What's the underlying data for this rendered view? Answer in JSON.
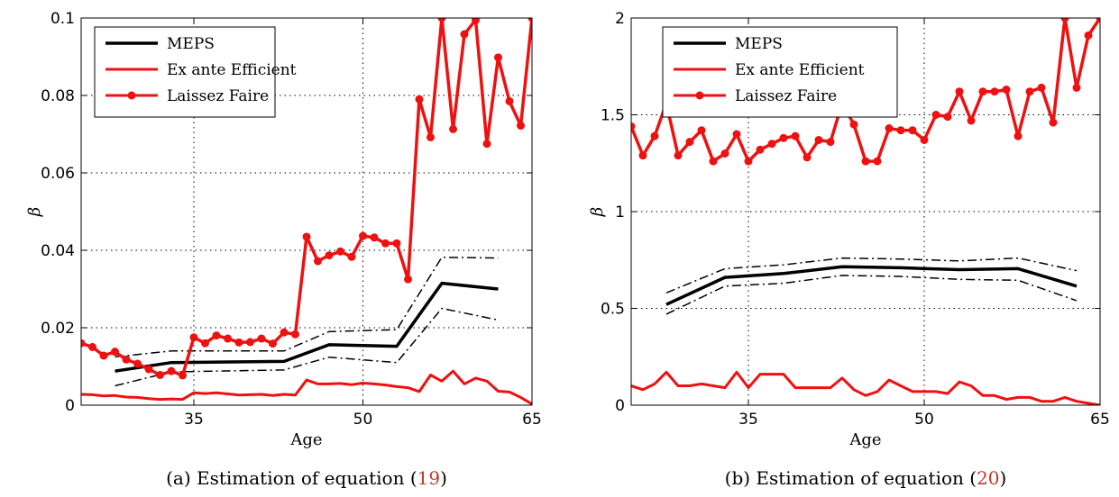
{
  "figure": {
    "panels": [
      {
        "caption_prefix": "(a)  Estimation of equation (",
        "caption_ref": "19",
        "caption_suffix": ")"
      },
      {
        "caption_prefix": "(b)  Estimation of equation (",
        "caption_ref": "20",
        "caption_suffix": ")"
      }
    ]
  },
  "colors": {
    "meps": "#000000",
    "efficient": "#ee1111",
    "laissez": "#ee1111",
    "grid": "#000000",
    "caption_ref": "#c0392b"
  },
  "chart_data": [
    {
      "type": "line",
      "xlabel": "Age",
      "ylabel": "β",
      "xlim": [
        25,
        65
      ],
      "ylim": [
        0,
        0.1
      ],
      "xticks": [
        35,
        50,
        65
      ],
      "yticks": [
        0,
        0.02,
        0.04,
        0.06,
        0.08,
        0.1
      ],
      "xtick_labels": [
        "35",
        "50",
        "65"
      ],
      "ytick_labels": [
        "0",
        "0.02",
        "0.04",
        "0.06",
        "0.08",
        "0.1"
      ],
      "grid": true,
      "legend": "top-left",
      "series": [
        {
          "name": "MEPS",
          "style": "solid",
          "color": "#000000",
          "x": [
            28,
            33,
            43,
            47,
            53,
            57,
            62
          ],
          "y": [
            0.0088,
            0.011,
            0.0113,
            0.0156,
            0.0152,
            0.0315,
            0.03
          ]
        },
        {
          "name": "",
          "style": "dashdot",
          "color": "#000000",
          "x": [
            28,
            33,
            43,
            47,
            53,
            57,
            62
          ],
          "y": [
            0.0125,
            0.014,
            0.014,
            0.019,
            0.0195,
            0.0382,
            0.038
          ]
        },
        {
          "name": "",
          "style": "dashdot",
          "color": "#000000",
          "x": [
            28,
            33,
            43,
            47,
            53,
            57,
            62
          ],
          "y": [
            0.005,
            0.0086,
            0.0091,
            0.0124,
            0.011,
            0.025,
            0.022
          ]
        },
        {
          "name": "Ex ante Efficient",
          "style": "solid",
          "color": "#ee1111",
          "x": [
            25,
            26,
            27,
            28,
            29,
            30,
            31,
            32,
            33,
            34,
            35,
            36,
            37,
            38,
            39,
            40,
            41,
            42,
            43,
            44,
            45,
            46,
            47,
            48,
            49,
            50,
            51,
            52,
            53,
            54,
            55,
            56,
            57,
            58,
            59,
            60,
            61,
            62,
            63,
            64,
            65
          ],
          "y": [
            0.0028,
            0.0027,
            0.0024,
            0.0025,
            0.0021,
            0.002,
            0.0017,
            0.0015,
            0.0016,
            0.0015,
            0.0032,
            0.003,
            0.0032,
            0.0029,
            0.0026,
            0.0027,
            0.0028,
            0.0025,
            0.0028,
            0.0026,
            0.0065,
            0.0055,
            0.0055,
            0.0056,
            0.0053,
            0.0057,
            0.0055,
            0.0052,
            0.0048,
            0.0045,
            0.0035,
            0.0078,
            0.0062,
            0.0088,
            0.0055,
            0.007,
            0.0062,
            0.0036,
            0.0034,
            0.002,
            0.0003
          ]
        },
        {
          "name": "Laissez Faire",
          "style": "solid-marker",
          "color": "#ee1111",
          "x": [
            25,
            26,
            27,
            28,
            29,
            30,
            31,
            32,
            33,
            34,
            35,
            36,
            37,
            38,
            39,
            40,
            41,
            42,
            43,
            44,
            45,
            46,
            47,
            48,
            49,
            50,
            51,
            52,
            53,
            54,
            55,
            56,
            57,
            58,
            59,
            60,
            61,
            62,
            63,
            64,
            65
          ],
          "y": [
            0.016,
            0.015,
            0.0128,
            0.0138,
            0.0118,
            0.0107,
            0.0093,
            0.0078,
            0.0088,
            0.0077,
            0.0175,
            0.016,
            0.018,
            0.0172,
            0.0162,
            0.0163,
            0.0172,
            0.0159,
            0.0188,
            0.0183,
            0.0435,
            0.0372,
            0.0387,
            0.0397,
            0.0383,
            0.0437,
            0.0433,
            0.0418,
            0.0418,
            0.0325,
            0.079,
            0.0692,
            0.1,
            0.0713,
            0.0958,
            0.0995,
            0.0675,
            0.0898,
            0.0785,
            0.0722,
            0.1
          ]
        }
      ]
    },
    {
      "type": "line",
      "xlabel": "Age",
      "ylabel": "β",
      "xlim": [
        25,
        65
      ],
      "ylim": [
        0,
        2
      ],
      "xticks": [
        35,
        50,
        65
      ],
      "yticks": [
        0,
        0.5,
        1,
        1.5,
        2
      ],
      "xtick_labels": [
        "35",
        "50",
        "65"
      ],
      "ytick_labels": [
        "0",
        "0.5",
        "1",
        "1.5",
        "2"
      ],
      "grid": true,
      "legend": "top-left",
      "series": [
        {
          "name": "MEPS",
          "style": "solid",
          "color": "#000000",
          "x": [
            28,
            33,
            38,
            43,
            48,
            53,
            58,
            63
          ],
          "y": [
            0.52,
            0.66,
            0.68,
            0.715,
            0.71,
            0.7,
            0.705,
            0.615
          ]
        },
        {
          "name": "",
          "style": "dashdot",
          "color": "#000000",
          "x": [
            28,
            33,
            38,
            43,
            48,
            53,
            58,
            63
          ],
          "y": [
            0.58,
            0.705,
            0.725,
            0.76,
            0.755,
            0.745,
            0.76,
            0.695
          ]
        },
        {
          "name": "",
          "style": "dashdot",
          "color": "#000000",
          "x": [
            28,
            33,
            38,
            43,
            48,
            53,
            58,
            63
          ],
          "y": [
            0.47,
            0.615,
            0.63,
            0.67,
            0.665,
            0.65,
            0.645,
            0.54
          ]
        },
        {
          "name": "Ex ante Efficient",
          "style": "solid",
          "color": "#ee1111",
          "x": [
            25,
            26,
            27,
            28,
            29,
            30,
            31,
            32,
            33,
            34,
            35,
            36,
            37,
            38,
            39,
            40,
            41,
            42,
            43,
            44,
            45,
            46,
            47,
            48,
            49,
            50,
            51,
            52,
            53,
            54,
            55,
            56,
            57,
            58,
            59,
            60,
            61,
            62,
            63,
            64,
            65
          ],
          "y": [
            0.1,
            0.08,
            0.11,
            0.17,
            0.1,
            0.1,
            0.11,
            0.1,
            0.09,
            0.17,
            0.09,
            0.16,
            0.16,
            0.16,
            0.09,
            0.09,
            0.09,
            0.09,
            0.14,
            0.08,
            0.05,
            0.07,
            0.13,
            0.1,
            0.07,
            0.07,
            0.07,
            0.06,
            0.12,
            0.1,
            0.05,
            0.05,
            0.03,
            0.04,
            0.04,
            0.02,
            0.02,
            0.04,
            0.02,
            0.01,
            0.0
          ]
        },
        {
          "name": "Laissez Faire",
          "style": "solid-marker",
          "color": "#ee1111",
          "x": [
            25,
            26,
            27,
            28,
            29,
            30,
            31,
            32,
            33,
            34,
            35,
            36,
            37,
            38,
            39,
            40,
            41,
            42,
            43,
            44,
            45,
            46,
            47,
            48,
            49,
            50,
            51,
            52,
            53,
            54,
            55,
            56,
            57,
            58,
            59,
            60,
            61,
            62,
            63,
            64,
            65
          ],
          "y": [
            1.44,
            1.29,
            1.39,
            1.56,
            1.29,
            1.36,
            1.42,
            1.26,
            1.3,
            1.4,
            1.26,
            1.32,
            1.35,
            1.38,
            1.39,
            1.28,
            1.37,
            1.36,
            1.56,
            1.45,
            1.26,
            1.26,
            1.43,
            1.42,
            1.42,
            1.37,
            1.5,
            1.49,
            1.62,
            1.47,
            1.62,
            1.62,
            1.63,
            1.39,
            1.62,
            1.64,
            1.46,
            2.0,
            1.64,
            1.91,
            2.0
          ]
        }
      ]
    }
  ]
}
